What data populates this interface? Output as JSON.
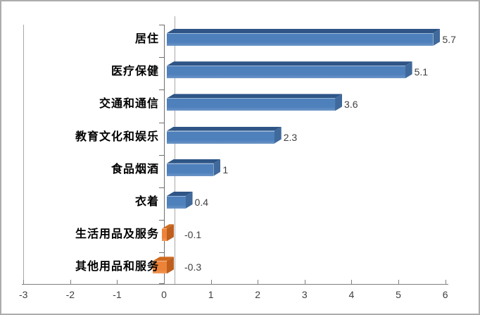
{
  "chart_data": {
    "type": "bar",
    "orientation": "horizontal",
    "title": "",
    "xlabel": "",
    "ylabel": "",
    "categories": [
      "居住",
      "医疗保健",
      "交通和通信",
      "教育文化和娱乐",
      "食品烟酒",
      "衣着",
      "生活用品及服务",
      "其他用品和服务"
    ],
    "values": [
      5.7,
      5.1,
      3.6,
      2.3,
      1,
      0.4,
      -0.1,
      -0.3
    ],
    "value_labels": [
      "5.7",
      "5.1",
      "3.6",
      "2.3",
      "1",
      "0.4",
      "-0.1",
      "-0.3"
    ],
    "x_ticks": [
      -3,
      -2,
      -1,
      0,
      1,
      2,
      3,
      4,
      5,
      6
    ],
    "x_tick_labels": [
      "-3",
      "-2",
      "-1",
      "0",
      "1",
      "2",
      "3",
      "4",
      "5",
      "6"
    ],
    "xlim": [
      -3,
      6
    ],
    "grid": false,
    "legend": false,
    "style": "3d-bevel",
    "colors": {
      "positive_front": "#4E80BC",
      "positive_top": "#2E5586",
      "positive_cap": "#40699C",
      "negative_front": "#ED8338",
      "negative_top": "#D06A1F",
      "negative_cap": "#BE5F1D",
      "axis_line": "#808080",
      "category_axis_line": "#6E6E6E",
      "zero_baseline": "#A8A8A8",
      "plot_left_border": "#A8A8A8",
      "tick_color": "#808080",
      "value_text": "#404040",
      "axis_text": "#3F3F3F",
      "category_text": "#000000",
      "frame_border": "#ACACAC",
      "background": "#FFFFFF"
    }
  }
}
